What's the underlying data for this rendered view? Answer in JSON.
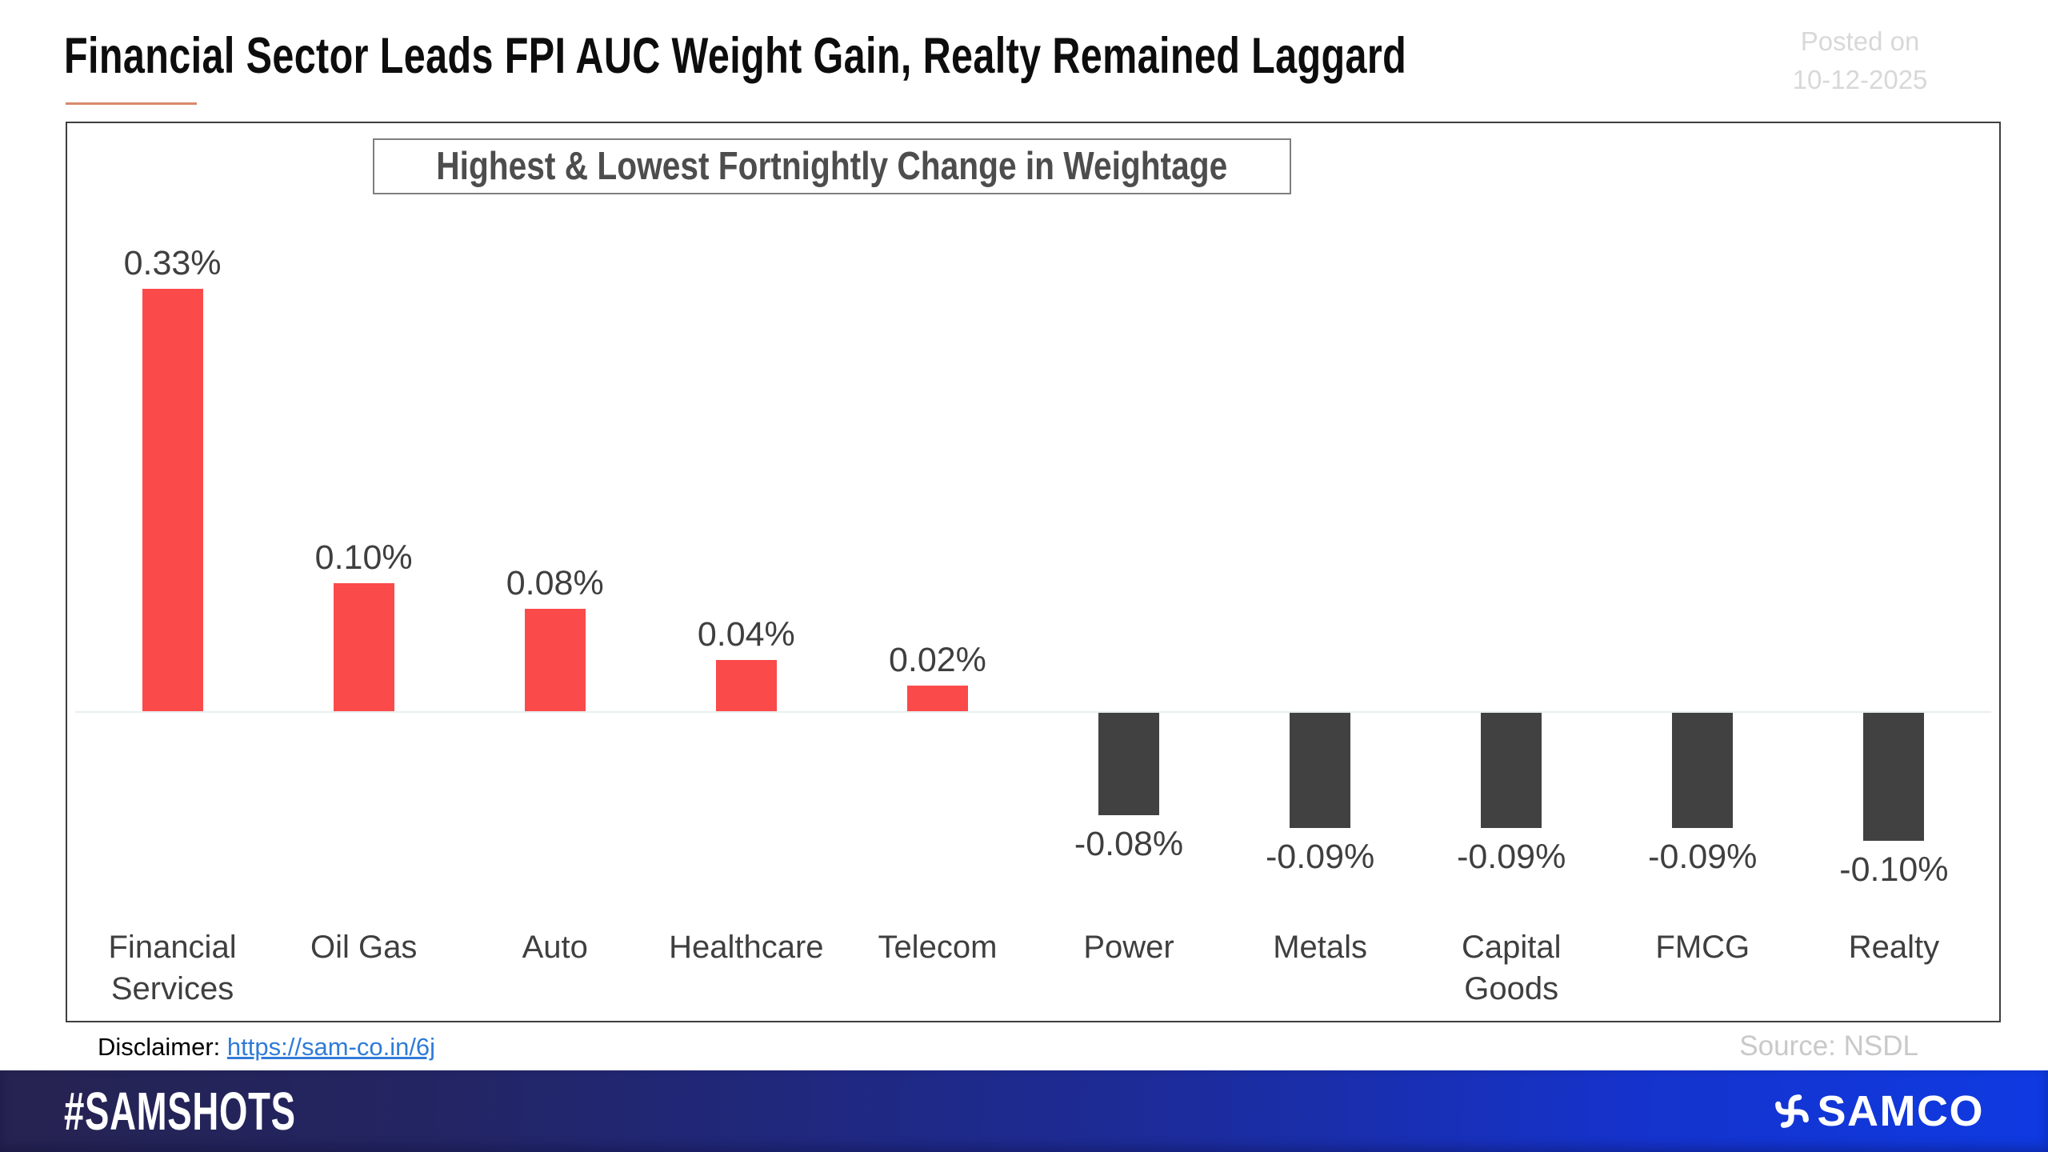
{
  "header": {
    "title": "Financial Sector Leads FPI AUC Weight Gain, Realty Remained Laggard",
    "posted_label": "Posted on",
    "posted_date": "10-12-2025",
    "accent_color": "#d8896b"
  },
  "chart_data": {
    "type": "bar",
    "title": "Highest & Lowest Fortnightly Change in Weightage",
    "categories": [
      "Financial Services",
      "Oil Gas",
      "Auto",
      "Healthcare",
      "Telecom",
      "Power",
      "Metals",
      "Capital Goods",
      "FMCG",
      "Realty"
    ],
    "values": [
      0.33,
      0.1,
      0.08,
      0.04,
      0.02,
      -0.08,
      -0.09,
      -0.09,
      -0.09,
      -0.1
    ],
    "data_labels": [
      "0.33%",
      "0.10%",
      "0.08%",
      "0.04%",
      "0.02%",
      "-0.08%",
      "-0.09%",
      "-0.09%",
      "-0.09%",
      "-0.10%"
    ],
    "unit": "%",
    "xlabel": "",
    "ylabel": "",
    "ylim": [
      -0.1,
      0.33
    ],
    "gridlines": false,
    "axes_hidden": true,
    "baseline": 0,
    "positive_color": "#fb4a4a",
    "negative_color": "#414141",
    "label_color": "#3f3f3f"
  },
  "footer": {
    "disclaimer_label": "Disclaimer:",
    "disclaimer_link": "https://sam-co.in/6j",
    "source": "Source: NSDL"
  },
  "brandbar": {
    "hashtag": "#SAMSHOTS",
    "brand": "SAMCO",
    "logo_icon": "samco-pinwheel-icon",
    "bg_left": "#262351",
    "bg_right": "#0f3ae2",
    "text_color": "#ffffff"
  }
}
